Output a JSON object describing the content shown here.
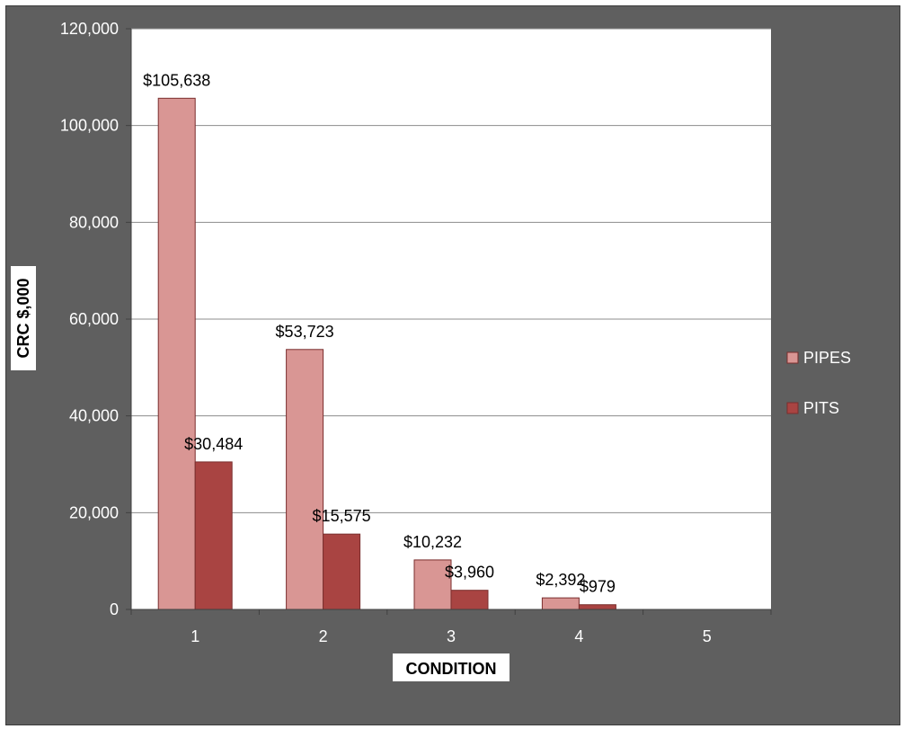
{
  "chart_data": {
    "type": "bar",
    "title": "",
    "xlabel": "CONDITION",
    "ylabel": "CRC  $,000",
    "categories": [
      "1",
      "2",
      "3",
      "4",
      "5"
    ],
    "series": [
      {
        "name": "PIPES",
        "values": [
          105638,
          53723,
          10232,
          2392,
          0
        ],
        "labels": [
          "$105,638",
          "$53,723",
          "$10,232",
          "$2,392",
          ""
        ],
        "color": "#d99694"
      },
      {
        "name": "PITS",
        "values": [
          30484,
          15575,
          3960,
          979,
          0
        ],
        "labels": [
          "$30,484",
          "$15,575",
          "$3,960",
          "$979",
          ""
        ],
        "color": "#a94442"
      }
    ],
    "ylim": [
      0,
      120000
    ],
    "yticks": [
      "0",
      "20,000",
      "40,000",
      "60,000",
      "80,000",
      "100,000",
      "120,000"
    ],
    "grid": true,
    "legend": "right",
    "colors": {
      "frame": "#5f5f5f",
      "plot_area": "#ffffff",
      "gridline": "#8c8c8c",
      "axis_text": "#ffffff",
      "data_label_text": "#000000",
      "axis_title_bg": "#ffffff",
      "bar_stroke": "#7a2e2d"
    }
  }
}
